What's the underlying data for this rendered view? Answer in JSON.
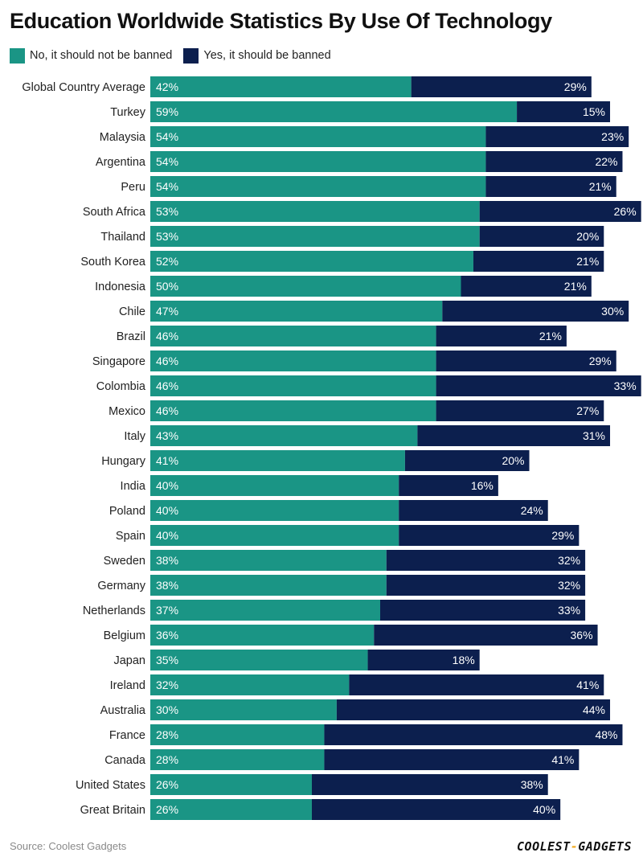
{
  "title": "Education Worldwide Statistics By Use Of Technology",
  "source": "Source: Coolest Gadgets",
  "logo": {
    "part1": "COOLEST",
    "dash": "-",
    "part2": "GADGETS"
  },
  "colors": {
    "no_series": "#1a9585",
    "yes_series": "#0c1f4e",
    "logo_accent": "#f0a81c"
  },
  "chart_data": {
    "type": "bar",
    "orientation": "horizontal",
    "stacked": true,
    "title": "Education Worldwide Statistics By Use Of Technology",
    "legend_position": "top-left",
    "grid": false,
    "xlim": [
      0,
      100
    ],
    "value_suffix": "%",
    "categories": [
      "Global Country Average",
      "Turkey",
      "Malaysia",
      "Argentina",
      "Peru",
      "South Africa",
      "Thailand",
      "South Korea",
      "Indonesia",
      "Chile",
      "Brazil",
      "Singapore",
      "Colombia",
      "Mexico",
      "Italy",
      "Hungary",
      "India",
      "Poland",
      "Spain",
      "Sweden",
      "Germany",
      "Netherlands",
      "Belgium",
      "Japan",
      "Ireland",
      "Australia",
      "France",
      "Canada",
      "United States",
      "Great Britain"
    ],
    "series": [
      {
        "name": "No, it should not be banned",
        "values": [
          42,
          59,
          54,
          54,
          54,
          53,
          53,
          52,
          50,
          47,
          46,
          46,
          46,
          46,
          43,
          41,
          40,
          40,
          40,
          38,
          38,
          37,
          36,
          35,
          32,
          30,
          28,
          28,
          26,
          26
        ]
      },
      {
        "name": "Yes, it should be banned",
        "values": [
          29,
          15,
          23,
          22,
          21,
          26,
          20,
          21,
          21,
          30,
          21,
          29,
          33,
          27,
          31,
          20,
          16,
          24,
          29,
          32,
          32,
          33,
          36,
          18,
          41,
          44,
          48,
          41,
          38,
          40
        ]
      }
    ]
  }
}
